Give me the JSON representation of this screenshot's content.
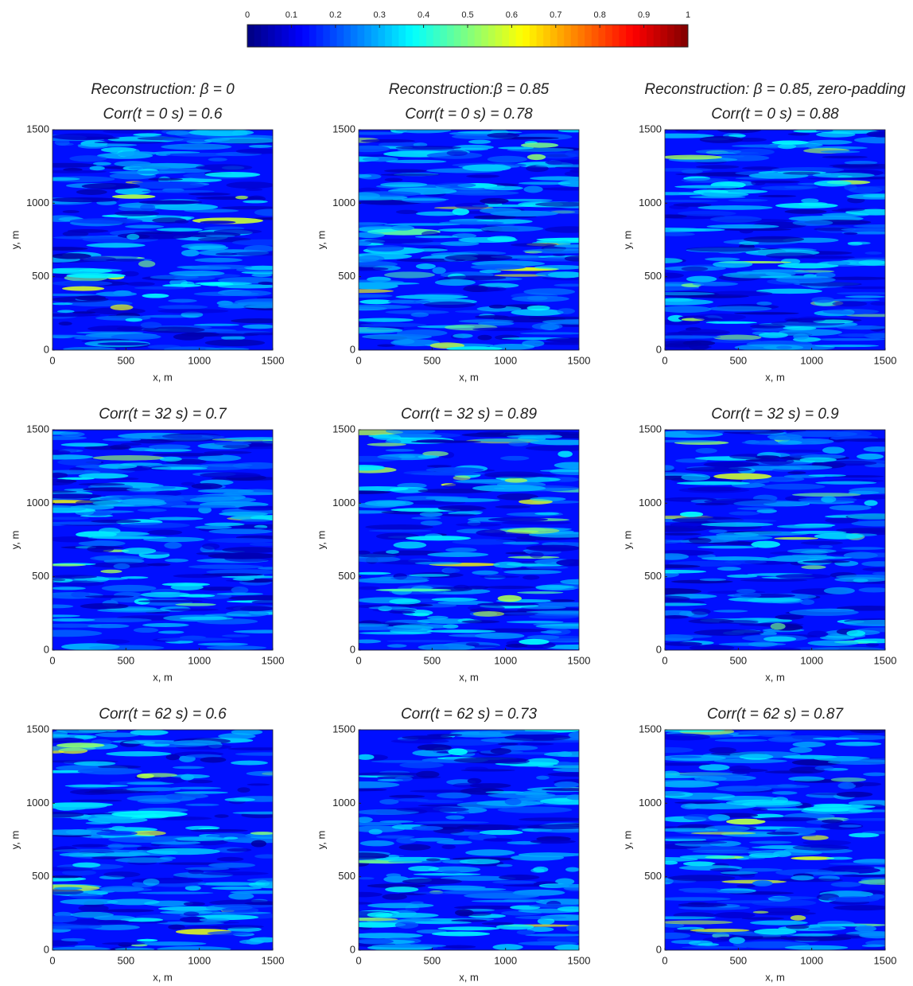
{
  "colorbar": {
    "lim": [
      0,
      1
    ],
    "ticks": [
      0,
      0.1,
      0.2,
      0.3,
      0.4,
      0.5,
      0.6,
      0.7,
      0.8,
      0.9,
      1
    ],
    "colormap": "jet"
  },
  "chart_data": [
    {
      "type": "heatmap",
      "title": [
        "Reconstruction: β = 0",
        "Corr(t = 0 s) = 0.6"
      ],
      "xlabel": "x, m",
      "ylabel": "y, m",
      "xlim": [
        0,
        1500
      ],
      "ylim": [
        0,
        1500
      ],
      "xticks": [
        0,
        500,
        1000,
        1500
      ],
      "yticks": [
        0,
        500,
        1000,
        1500
      ]
    },
    {
      "type": "heatmap",
      "title": [
        "Reconstruction:β = 0.85",
        "Corr(t = 0 s) = 0.78"
      ],
      "xlabel": "x, m",
      "ylabel": "y, m",
      "xlim": [
        0,
        1500
      ],
      "ylim": [
        0,
        1500
      ],
      "xticks": [
        0,
        500,
        1000,
        1500
      ],
      "yticks": [
        0,
        500,
        1000,
        1500
      ]
    },
    {
      "type": "heatmap",
      "title": [
        "Reconstruction: β = 0.85, zero-padding",
        "Corr(t = 0 s) = 0.88"
      ],
      "xlabel": "x, m",
      "ylabel": "y, m",
      "xlim": [
        0,
        1500
      ],
      "ylim": [
        0,
        1500
      ],
      "xticks": [
        0,
        500,
        1000,
        1500
      ],
      "yticks": [
        0,
        500,
        1000,
        1500
      ]
    },
    {
      "type": "heatmap",
      "title": [
        "Corr(t = 32 s) = 0.7"
      ],
      "xlabel": "x, m",
      "ylabel": "y, m",
      "xlim": [
        0,
        1500
      ],
      "ylim": [
        0,
        1500
      ],
      "xticks": [
        0,
        500,
        1000,
        1500
      ],
      "yticks": [
        0,
        500,
        1000,
        1500
      ]
    },
    {
      "type": "heatmap",
      "title": [
        "Corr(t = 32 s) = 0.89"
      ],
      "xlabel": "x, m",
      "ylabel": "y, m",
      "xlim": [
        0,
        1500
      ],
      "ylim": [
        0,
        1500
      ],
      "xticks": [
        0,
        500,
        1000,
        1500
      ],
      "yticks": [
        0,
        500,
        1000,
        1500
      ]
    },
    {
      "type": "heatmap",
      "title": [
        "Corr(t = 32 s) = 0.9"
      ],
      "xlabel": "x, m",
      "ylabel": "y, m",
      "xlim": [
        0,
        1500
      ],
      "ylim": [
        0,
        1500
      ],
      "xticks": [
        0,
        500,
        1000,
        1500
      ],
      "yticks": [
        0,
        500,
        1000,
        1500
      ]
    },
    {
      "type": "heatmap",
      "title": [
        "Corr(t = 62 s) = 0.6"
      ],
      "xlabel": "x, m",
      "ylabel": "y, m",
      "xlim": [
        0,
        1500
      ],
      "ylim": [
        0,
        1500
      ],
      "xticks": [
        0,
        500,
        1000,
        1500
      ],
      "yticks": [
        0,
        500,
        1000,
        1500
      ]
    },
    {
      "type": "heatmap",
      "title": [
        "Corr(t = 62 s) = 0.73"
      ],
      "xlabel": "x, m",
      "ylabel": "y, m",
      "xlim": [
        0,
        1500
      ],
      "ylim": [
        0,
        1500
      ],
      "xticks": [
        0,
        500,
        1000,
        1500
      ],
      "yticks": [
        0,
        500,
        1000,
        1500
      ]
    },
    {
      "type": "heatmap",
      "title": [
        "Corr(t = 62 s) = 0.87"
      ],
      "xlabel": "x, m",
      "ylabel": "y, m",
      "xlim": [
        0,
        1500
      ],
      "ylim": [
        0,
        1500
      ],
      "xticks": [
        0,
        500,
        1000,
        1500
      ],
      "yticks": [
        0,
        500,
        1000,
        1500
      ]
    }
  ]
}
